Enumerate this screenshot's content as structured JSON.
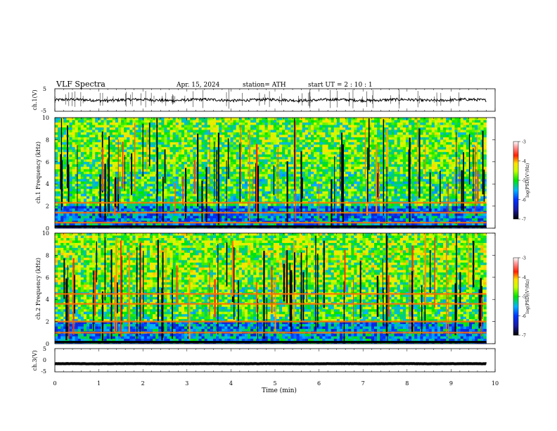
{
  "header": {
    "title": "VLF Spectra",
    "date": "Apr. 15, 2024",
    "station": "station= ATH",
    "start": "start UT =   2 : 10 : 1"
  },
  "chart_data": [
    {
      "type": "line",
      "ylabel": "ch.1(V)",
      "ylim": [
        -5,
        5
      ],
      "y_ticks": [
        "5",
        "-5"
      ],
      "xlim": [
        0,
        10
      ],
      "series": [
        {
          "x_range": [
            0,
            9.8
          ],
          "baseline": 0,
          "noise": 1.2
        }
      ]
    },
    {
      "type": "heatmap",
      "ylabel": "ch.1 Frequency (kHz)",
      "ylim": [
        0,
        10
      ],
      "y_ticks": [
        "0",
        "2",
        "4",
        "6",
        "8",
        "10"
      ],
      "xlim": [
        0,
        10
      ],
      "data_x_range": [
        0,
        9.8
      ],
      "bands_khz": [
        2.3,
        1.4,
        0.5
      ],
      "colorbar": {
        "label": "log(PSD)(V²/Hz)",
        "ticks": [
          "-3",
          "-4",
          "-5",
          "-6",
          "-7"
        ],
        "range": [
          -7,
          -3
        ]
      }
    },
    {
      "type": "heatmap",
      "ylabel": "ch.2 Frequency (kHz)",
      "ylim": [
        0,
        10
      ],
      "y_ticks": [
        "0",
        "2",
        "4",
        "6",
        "8",
        "10"
      ],
      "xlim": [
        0,
        10
      ],
      "data_x_range": [
        0,
        9.8
      ],
      "bands_khz": [
        4.5,
        3.6,
        2.0,
        1.0
      ],
      "colorbar": {
        "label": "log(PSD)(V²/Hz)",
        "ticks": [
          "-3",
          "-4",
          "-5",
          "-6",
          "-7"
        ],
        "range": [
          -7,
          -3
        ]
      }
    },
    {
      "type": "line",
      "ylabel": "ch.3(V)",
      "ylim": [
        -5,
        5
      ],
      "y_ticks": [
        "5",
        "0",
        "-5"
      ],
      "xlim": [
        0,
        10
      ],
      "series": [
        {
          "x_range": [
            0,
            9.8
          ],
          "baseline": -1.5,
          "noise": 0.1
        }
      ]
    }
  ],
  "x_axis": {
    "label": "Time (min)",
    "ticks": [
      "0",
      "1",
      "2",
      "3",
      "4",
      "5",
      "6",
      "7",
      "8",
      "9",
      "10"
    ]
  }
}
